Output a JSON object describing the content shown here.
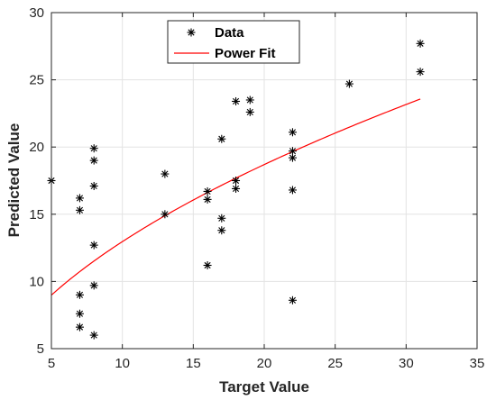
{
  "chart_data": {
    "type": "scatter",
    "title": "",
    "xlabel": "Target Value",
    "ylabel": "Predicted Value",
    "xlim": [
      5,
      35
    ],
    "ylim": [
      5,
      30
    ],
    "xticks": [
      5,
      10,
      15,
      20,
      25,
      30,
      35
    ],
    "yticks": [
      5,
      10,
      15,
      20,
      25,
      30
    ],
    "grid": true,
    "legend": {
      "position": "top-center",
      "entries": [
        "Data",
        "Power Fit"
      ]
    },
    "series": [
      {
        "name": "Data",
        "marker": "asterisk",
        "color": "#000000",
        "points": [
          [
            5,
            17.5
          ],
          [
            7,
            16.2
          ],
          [
            7,
            15.3
          ],
          [
            7,
            9.0
          ],
          [
            7,
            7.6
          ],
          [
            7,
            6.6
          ],
          [
            8,
            19.9
          ],
          [
            8,
            19.0
          ],
          [
            8,
            17.1
          ],
          [
            8,
            12.7
          ],
          [
            8,
            9.7
          ],
          [
            8,
            6.0
          ],
          [
            13,
            18.0
          ],
          [
            13,
            15.0
          ],
          [
            16,
            16.7
          ],
          [
            16,
            16.1
          ],
          [
            16,
            11.2
          ],
          [
            17,
            20.6
          ],
          [
            17,
            14.7
          ],
          [
            17,
            13.8
          ],
          [
            18,
            23.4
          ],
          [
            18,
            17.5
          ],
          [
            18,
            16.9
          ],
          [
            19,
            23.5
          ],
          [
            19,
            22.6
          ],
          [
            22,
            21.1
          ],
          [
            22,
            19.7
          ],
          [
            22,
            19.2
          ],
          [
            22,
            16.8
          ],
          [
            22,
            8.6
          ],
          [
            26,
            24.7
          ],
          [
            31,
            27.7
          ],
          [
            31,
            25.6
          ]
        ]
      },
      {
        "name": "Power Fit",
        "line": true,
        "color": "#ff0000",
        "model": {
          "a": 3.836,
          "b": 0.5287
        },
        "x_range": [
          5,
          31
        ]
      }
    ]
  }
}
